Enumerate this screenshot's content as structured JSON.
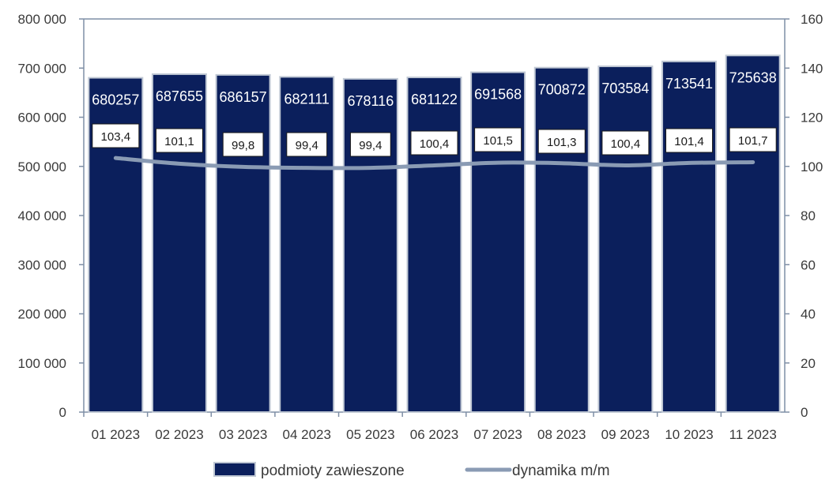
{
  "chart_data": {
    "type": "bar",
    "categories": [
      "01 2023",
      "02 2023",
      "03 2023",
      "04 2023",
      "05 2023",
      "06 2023",
      "07 2023",
      "08 2023",
      "09 2023",
      "10 2023",
      "11 2023"
    ],
    "series": [
      {
        "name": "podmioty zawieszone",
        "type": "bar",
        "axis": "left",
        "color": "#0b1f5c",
        "values": [
          680257,
          687655,
          686157,
          682111,
          678116,
          681122,
          691568,
          700872,
          703584,
          713541,
          725638
        ],
        "labels": [
          "680257",
          "687655",
          "686157",
          "682111",
          "678116",
          "681122",
          "691568",
          "700872",
          "703584",
          "713541",
          "725638"
        ]
      },
      {
        "name": "dynamika m/m",
        "type": "line",
        "axis": "right",
        "color": "#8a9bb4",
        "values": [
          103.4,
          101.1,
          99.8,
          99.4,
          99.4,
          100.4,
          101.5,
          101.3,
          100.4,
          101.4,
          101.7
        ],
        "labels": [
          "103,4",
          "101,1",
          "99,8",
          "99,4",
          "99,4",
          "100,4",
          "101,5",
          "101,3",
          "100,4",
          "101,4",
          "101,7"
        ]
      }
    ],
    "y_left": {
      "ylim": [
        0,
        800000
      ],
      "ticks": [
        0,
        100000,
        200000,
        300000,
        400000,
        500000,
        600000,
        700000,
        800000
      ],
      "tick_labels": [
        "0",
        "100 000",
        "200 000",
        "300 000",
        "400 000",
        "500 000",
        "600 000",
        "700 000",
        "800 000"
      ]
    },
    "y_right": {
      "ylim": [
        0,
        160
      ],
      "ticks": [
        0,
        20,
        40,
        60,
        80,
        100,
        120,
        140,
        160
      ],
      "tick_labels": [
        "0",
        "20",
        "40",
        "60",
        "80",
        "100",
        "120",
        "140",
        "160"
      ]
    },
    "legend": {
      "placement": "bottom",
      "entries": [
        "podmioty zawieszone",
        "dynamika m/m"
      ]
    },
    "grid": false,
    "title": "",
    "xlabel": "",
    "ylabel": ""
  }
}
